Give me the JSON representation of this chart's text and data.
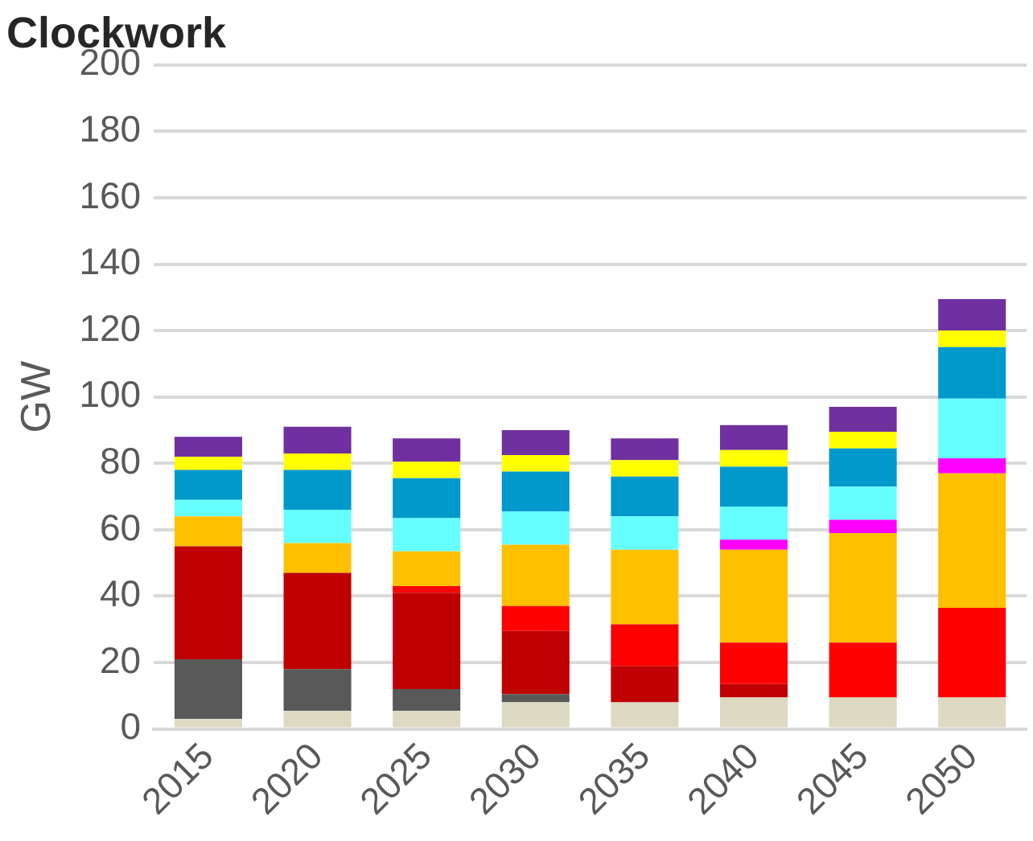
{
  "chart_data": {
    "type": "bar",
    "title": "Clockwork",
    "ylabel": "GW",
    "stacked": true,
    "categories": [
      "2015",
      "2020",
      "2025",
      "2030",
      "2035",
      "2040",
      "2045",
      "2050"
    ],
    "ylim": [
      0,
      200
    ],
    "yticks": [
      0,
      20,
      40,
      60,
      80,
      100,
      120,
      140,
      160,
      180,
      200
    ],
    "grid": "y",
    "legend": false,
    "series": [
      {
        "color": "#ddd9c3",
        "values": [
          3,
          5.5,
          5.5,
          8,
          8,
          9.5,
          9.5,
          9.5
        ]
      },
      {
        "color": "#595959",
        "values": [
          18,
          12.5,
          6.5,
          2.5,
          0,
          0,
          0,
          0
        ]
      },
      {
        "color": "#c00000",
        "values": [
          34,
          29,
          29,
          19,
          11,
          4,
          0,
          0
        ]
      },
      {
        "color": "#ff0000",
        "values": [
          0,
          0,
          2,
          7.5,
          12.5,
          12.5,
          16.5,
          27
        ]
      },
      {
        "color": "#ffc000",
        "values": [
          9,
          9,
          10.5,
          18.5,
          22.5,
          28,
          33,
          40.5
        ]
      },
      {
        "color": "#ff00ff",
        "values": [
          0,
          0,
          0,
          0,
          0,
          3,
          4,
          4.5
        ]
      },
      {
        "color": "#66ffff",
        "values": [
          5,
          10,
          10,
          10,
          10,
          10,
          10,
          18
        ]
      },
      {
        "color": "#0099cc",
        "values": [
          9,
          12,
          12,
          12,
          12,
          12,
          11.5,
          15.5
        ]
      },
      {
        "color": "#ffff00",
        "values": [
          4,
          5,
          5,
          5,
          5,
          5,
          5,
          5
        ]
      },
      {
        "color": "#7030a0",
        "values": [
          6,
          8,
          7,
          7.5,
          6.5,
          7.5,
          7.5,
          9.5
        ]
      }
    ]
  }
}
